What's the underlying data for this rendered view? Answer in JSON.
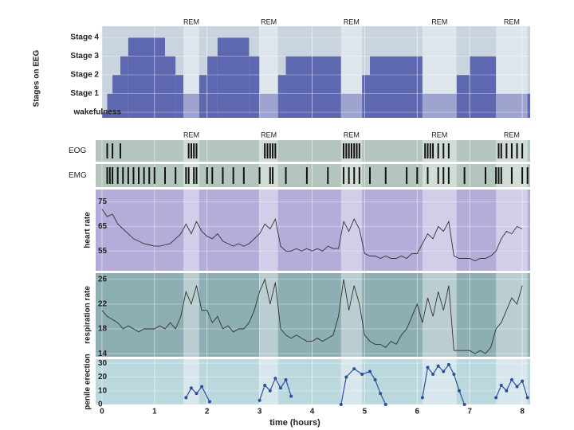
{
  "chart_data": [
    {
      "type": "step",
      "ylabel": "Stages on EEG",
      "x": [
        0,
        0.1,
        0.2,
        0.35,
        0.5,
        1.2,
        1.4,
        1.55,
        1.85,
        2.0,
        2.2,
        2.8,
        3.0,
        3.35,
        3.5,
        4.55,
        4.95,
        5.1,
        6.1,
        6.75,
        7.0,
        7.5
      ],
      "values": [
        0,
        1,
        2,
        3,
        4,
        3,
        2,
        1,
        2,
        3,
        4,
        3,
        1,
        2,
        3,
        1,
        2,
        3,
        1,
        2,
        3,
        1
      ],
      "ylim": [
        -0.3,
        4.6
      ],
      "xlim": [
        -0.12,
        8.15
      ],
      "color": "#4b55a8",
      "yticks": [
        {
          "value": 0,
          "label": "wakefulness"
        },
        {
          "value": 1,
          "label": "Stage 1"
        },
        {
          "value": 2,
          "label": "Stage 2"
        },
        {
          "value": 3,
          "label": "Stage 3"
        },
        {
          "value": 4,
          "label": "Stage 4"
        }
      ]
    },
    {
      "type": "events",
      "ylabel": "EOG",
      "xlim": [
        -0.12,
        8.15
      ],
      "color": "#111111",
      "x": [
        0.1,
        0.2,
        0.35,
        1.65,
        1.7,
        1.75,
        1.8,
        3.1,
        3.15,
        3.2,
        3.25,
        3.3,
        4.6,
        4.65,
        4.7,
        4.75,
        4.8,
        4.85,
        4.9,
        6.15,
        6.2,
        6.25,
        6.3,
        6.4,
        6.5,
        6.6,
        7.55,
        7.6,
        7.7,
        7.8,
        7.9,
        8.0
      ]
    },
    {
      "type": "events",
      "ylabel": "EMG",
      "xlim": [
        -0.12,
        8.15
      ],
      "color": "#111111",
      "x": [
        0.1,
        0.15,
        0.2,
        0.3,
        0.4,
        0.5,
        0.6,
        0.7,
        0.8,
        0.9,
        1.0,
        1.2,
        1.4,
        1.6,
        1.65,
        1.75,
        1.8,
        2.0,
        2.1,
        2.3,
        2.5,
        2.7,
        3.0,
        3.2,
        3.25,
        3.5,
        3.9,
        4.3,
        4.6,
        4.7,
        4.8,
        4.9,
        5.1,
        5.4,
        5.8,
        6.0,
        6.2,
        6.4,
        6.5,
        6.6,
        6.9,
        7.3,
        7.5,
        7.55,
        7.6,
        7.8,
        8.0,
        8.1
      ]
    },
    {
      "type": "line",
      "ylabel": "heart rate",
      "xlim": [
        -0.12,
        8.15
      ],
      "ylim": [
        47,
        80
      ],
      "yticks": [
        55,
        65,
        75
      ],
      "color": "#333333",
      "x": [
        0,
        0.1,
        0.2,
        0.3,
        0.4,
        0.5,
        0.6,
        0.7,
        0.8,
        0.9,
        1,
        1.1,
        1.2,
        1.3,
        1.4,
        1.5,
        1.6,
        1.7,
        1.8,
        1.9,
        2,
        2.1,
        2.2,
        2.3,
        2.4,
        2.5,
        2.6,
        2.7,
        2.8,
        2.9,
        3,
        3.1,
        3.2,
        3.3,
        3.4,
        3.5,
        3.6,
        3.7,
        3.8,
        3.9,
        4,
        4.1,
        4.2,
        4.3,
        4.4,
        4.5,
        4.6,
        4.7,
        4.8,
        4.9,
        5,
        5.1,
        5.2,
        5.3,
        5.4,
        5.5,
        5.6,
        5.7,
        5.8,
        5.9,
        6,
        6.1,
        6.2,
        6.3,
        6.4,
        6.5,
        6.6,
        6.7,
        6.8,
        6.9,
        7,
        7.1,
        7.2,
        7.3,
        7.4,
        7.5,
        7.6,
        7.7,
        7.8,
        7.9,
        8
      ],
      "values": [
        72,
        69,
        70,
        66,
        64,
        62,
        60,
        59,
        58,
        57.5,
        57,
        57,
        57.5,
        58,
        60,
        62,
        66,
        62,
        67,
        63,
        61,
        60,
        62,
        59,
        58,
        57,
        58,
        57,
        58,
        60,
        62,
        66,
        64,
        68,
        57,
        55,
        55,
        56,
        55,
        56,
        55,
        56,
        55,
        57,
        56,
        56,
        67,
        63,
        68,
        64,
        54,
        53,
        53,
        52,
        53,
        52,
        52,
        53,
        52,
        54,
        54,
        58,
        62,
        60,
        65,
        63,
        67,
        53,
        52,
        52,
        52,
        51,
        52,
        52,
        53,
        55,
        60,
        63,
        62,
        65,
        64
      ]
    },
    {
      "type": "line",
      "ylabel": "respiration rate",
      "xlim": [
        -0.12,
        8.15
      ],
      "ylim": [
        13.5,
        27
      ],
      "yticks": [
        14,
        18,
        22,
        26
      ],
      "color": "#333333",
      "x": [
        0,
        0.1,
        0.2,
        0.3,
        0.4,
        0.5,
        0.6,
        0.7,
        0.8,
        0.9,
        1,
        1.1,
        1.2,
        1.3,
        1.4,
        1.5,
        1.6,
        1.7,
        1.8,
        1.9,
        2,
        2.1,
        2.2,
        2.3,
        2.4,
        2.5,
        2.6,
        2.7,
        2.8,
        2.9,
        3,
        3.1,
        3.2,
        3.3,
        3.4,
        3.5,
        3.6,
        3.7,
        3.8,
        3.9,
        4,
        4.1,
        4.2,
        4.3,
        4.4,
        4.5,
        4.6,
        4.7,
        4.8,
        4.9,
        5,
        5.1,
        5.2,
        5.3,
        5.4,
        5.5,
        5.6,
        5.7,
        5.8,
        5.9,
        6,
        6.1,
        6.2,
        6.3,
        6.4,
        6.5,
        6.6,
        6.7,
        6.8,
        6.9,
        7,
        7.1,
        7.2,
        7.3,
        7.4,
        7.5,
        7.6,
        7.7,
        7.8,
        7.9,
        8
      ],
      "values": [
        21,
        20,
        19.5,
        19,
        18,
        18.5,
        18,
        17.5,
        18,
        18,
        18,
        18.5,
        18,
        19,
        18,
        20,
        24,
        22,
        25,
        21,
        21,
        19,
        20,
        18,
        18.5,
        17.5,
        18,
        18,
        19,
        21,
        24,
        26,
        22,
        25.5,
        18,
        17,
        16.5,
        17,
        16.5,
        16,
        16,
        16.5,
        16,
        16.5,
        17,
        20,
        26,
        21,
        25,
        22,
        17,
        16,
        15.5,
        15.5,
        15,
        16,
        15.5,
        17,
        18,
        20,
        22,
        19,
        23,
        20,
        24,
        21,
        25,
        14.5,
        14.5,
        14.5,
        14.5,
        14,
        14.5,
        14,
        15,
        18,
        19,
        21,
        23,
        22,
        25
      ]
    },
    {
      "type": "line",
      "ylabel": "penile erection",
      "xlabel": "time (hours)",
      "markers": true,
      "xlim": [
        -0.12,
        8.15
      ],
      "ylim": [
        0,
        33
      ],
      "yticks": [
        0,
        10,
        20,
        30
      ],
      "xticks": [
        0,
        1,
        2,
        3,
        4,
        5,
        6,
        7,
        8
      ],
      "color": "#2d4fa0",
      "x": [
        1.6,
        1.7,
        1.8,
        1.9,
        2.05,
        2.5,
        3.0,
        3.1,
        3.2,
        3.3,
        3.4,
        3.5,
        3.6,
        4.0,
        4.55,
        4.65,
        4.8,
        4.95,
        5.1,
        5.2,
        5.3,
        5.4,
        5.8,
        6.1,
        6.2,
        6.3,
        6.4,
        6.5,
        6.6,
        6.7,
        6.8,
        6.9,
        7.2,
        7.5,
        7.6,
        7.7,
        7.8,
        7.9,
        8.0,
        8.1
      ],
      "values": [
        5,
        12,
        8,
        13,
        2,
        null,
        3,
        14,
        10,
        19,
        12,
        18,
        6,
        null,
        0,
        20,
        26,
        22,
        24,
        18,
        8,
        0,
        null,
        5,
        27,
        22,
        28,
        24,
        29,
        22,
        10,
        0,
        null,
        5,
        14,
        10,
        18,
        13,
        17,
        5
      ]
    }
  ],
  "rem": {
    "starts": [
      1.55,
      3.0,
      4.55,
      6.1,
      7.5
    ],
    "ends": [
      1.85,
      3.35,
      4.95,
      6.75,
      8.1
    ],
    "labels_top": [
      "REM",
      "REM",
      "REM",
      "REM",
      "REM"
    ],
    "labels_middle": [
      "REM",
      "REM",
      "REM",
      "REM",
      "REM"
    ]
  }
}
